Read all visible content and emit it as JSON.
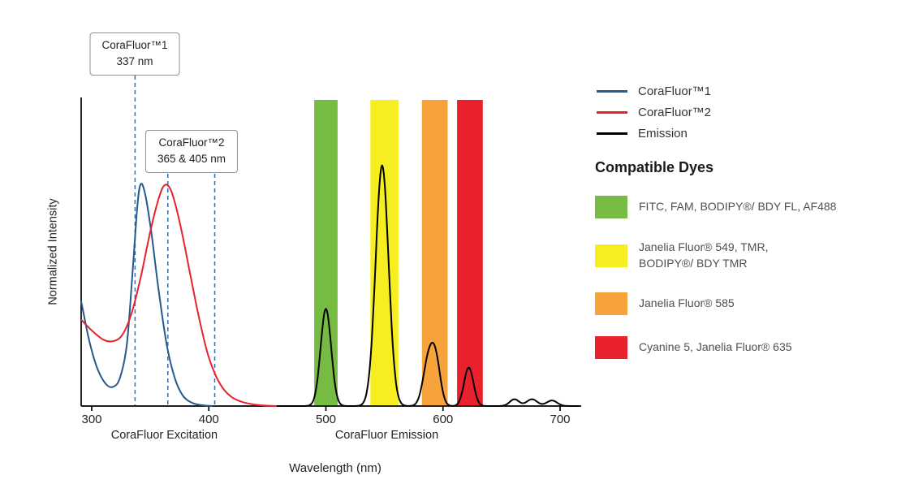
{
  "annotations": [
    {
      "line1": "CoraFluor™1",
      "line2": "337 nm"
    },
    {
      "line1": "CoraFluor™2",
      "line2": "365 & 405 nm"
    }
  ],
  "legend": {
    "items": [
      {
        "id": "corafluor1",
        "label": "CoraFluor™1",
        "color": "#27598e"
      },
      {
        "id": "corafluor2",
        "label": "CoraFluor™2",
        "color": "#e8212c"
      },
      {
        "id": "emission",
        "label": "Emission",
        "color": "#000000"
      }
    ]
  },
  "compatible_dyes": {
    "title": "Compatible Dyes",
    "items": [
      {
        "id": "green",
        "color": "#76bc43",
        "lines": [
          "FITC, FAM, BODIPY®/ BDY FL, AF488"
        ]
      },
      {
        "id": "yellow",
        "color": "#f7ee21",
        "lines": [
          "Janelia Fluor® 549, TMR,",
          "BODIPY®/ BDY TMR"
        ]
      },
      {
        "id": "orange",
        "color": "#f6a33c",
        "lines": [
          "Janelia Fluor® 585"
        ]
      },
      {
        "id": "red",
        "color": "#e8212c",
        "lines": [
          "Cyanine 5, Janelia Fluor® 635"
        ]
      }
    ]
  },
  "chart_data": {
    "type": "line",
    "x_axis": {
      "label": "Wavelength (nm)",
      "ticks": [
        300,
        400,
        500,
        600,
        700
      ],
      "range": [
        291,
        718
      ],
      "unit": "nm"
    },
    "y_axis": {
      "label": "Normalized Intensity",
      "range": [
        0,
        1
      ]
    },
    "region_labels": [
      {
        "text": "CoraFluor Excitation",
        "center_nm": 362
      },
      {
        "text": "CoraFluor Emission",
        "center_nm": 552
      }
    ],
    "dashed_lines": [
      {
        "nm": 337,
        "annotation": 0,
        "color": "#3a6ea8"
      },
      {
        "nm": 365,
        "annotation": 1,
        "color": "#3a6ea8"
      },
      {
        "nm": 405,
        "annotation": 1,
        "color": "#3a6ea8"
      }
    ],
    "bands": [
      {
        "name": "green",
        "color": "#76bc43",
        "from_nm": 490,
        "to_nm": 510
      },
      {
        "name": "yellow",
        "color": "#f7ee21",
        "from_nm": 538,
        "to_nm": 562
      },
      {
        "name": "orange",
        "color": "#f6a33c",
        "from_nm": 582,
        "to_nm": 604
      },
      {
        "name": "red",
        "color": "#e8212c",
        "from_nm": 612,
        "to_nm": 634
      }
    ],
    "series": [
      {
        "id": "corafluor1",
        "name": "CoraFluor™1",
        "kind": "spline",
        "color": "#27598e",
        "points": [
          [
            291,
            0.34
          ],
          [
            298,
            0.21
          ],
          [
            305,
            0.12
          ],
          [
            312,
            0.072
          ],
          [
            318,
            0.062
          ],
          [
            324,
            0.09
          ],
          [
            330,
            0.2
          ],
          [
            335,
            0.44
          ],
          [
            339,
            0.65
          ],
          [
            342,
            0.72
          ],
          [
            346,
            0.68
          ],
          [
            351,
            0.56
          ],
          [
            357,
            0.38
          ],
          [
            364,
            0.2
          ],
          [
            371,
            0.09
          ],
          [
            378,
            0.033
          ],
          [
            386,
            0.01
          ],
          [
            394,
            0.003
          ],
          [
            403,
            0
          ]
        ]
      },
      {
        "id": "corafluor2",
        "name": "CoraFluor™2",
        "kind": "spline",
        "color": "#e8212c",
        "points": [
          [
            291,
            0.28
          ],
          [
            300,
            0.245
          ],
          [
            310,
            0.215
          ],
          [
            318,
            0.21
          ],
          [
            326,
            0.23
          ],
          [
            334,
            0.3
          ],
          [
            342,
            0.42
          ],
          [
            350,
            0.565
          ],
          [
            357,
            0.67
          ],
          [
            362,
            0.715
          ],
          [
            367,
            0.705
          ],
          [
            372,
            0.645
          ],
          [
            378,
            0.545
          ],
          [
            385,
            0.41
          ],
          [
            392,
            0.28
          ],
          [
            399,
            0.17
          ],
          [
            406,
            0.098
          ],
          [
            413,
            0.053
          ],
          [
            420,
            0.028
          ],
          [
            428,
            0.014
          ],
          [
            437,
            0.006
          ],
          [
            447,
            0.002
          ],
          [
            458,
            0
          ]
        ]
      },
      {
        "id": "emission",
        "name": "Emission",
        "kind": "gaussian-sum",
        "color": "#000000",
        "range": [
          458,
          716
        ],
        "peaks": [
          {
            "center": 500,
            "sigma": 4.5,
            "height": 0.315
          },
          {
            "center": 548,
            "sigma": 5.5,
            "height": 0.78
          },
          {
            "center": 587.5,
            "sigma": 4.5,
            "height": 0.145
          },
          {
            "center": 594,
            "sigma": 4.0,
            "height": 0.13
          },
          {
            "center": 622,
            "sigma": 4.0,
            "height": 0.125
          },
          {
            "center": 661,
            "sigma": 4.0,
            "height": 0.022
          },
          {
            "center": 676,
            "sigma": 4.5,
            "height": 0.022
          },
          {
            "center": 693,
            "sigma": 4.5,
            "height": 0.018
          }
        ]
      }
    ]
  }
}
